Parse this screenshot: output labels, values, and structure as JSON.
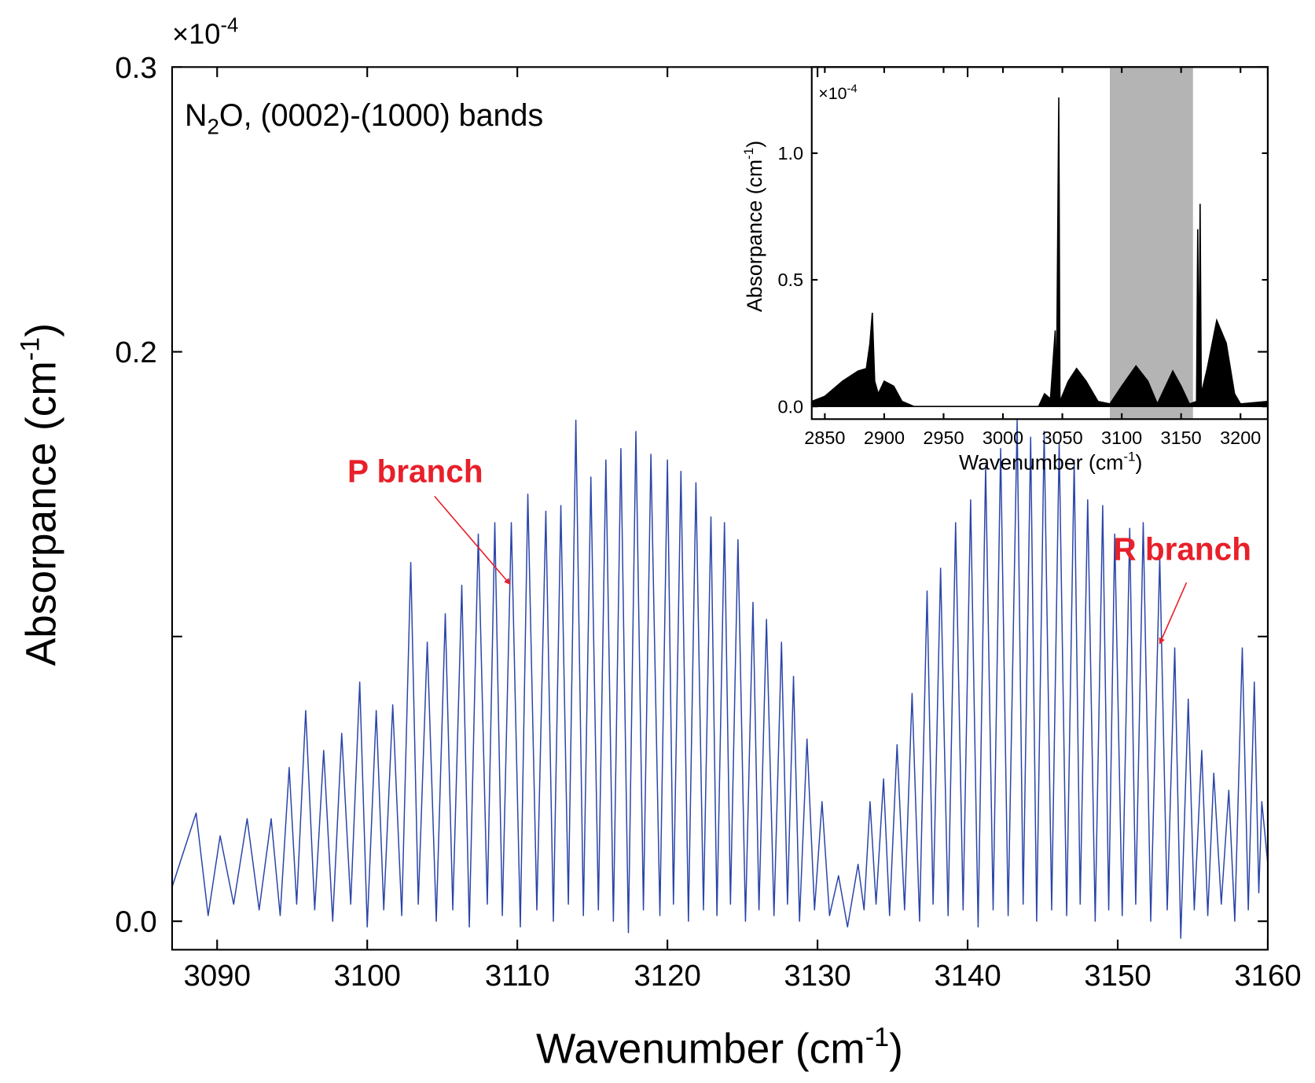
{
  "chart_data": [
    {
      "type": "line",
      "title": {
        "pre": "N",
        "sub": "2",
        "post": "O, (0002)-(1000) bands"
      },
      "x_label": {
        "pre": "Wavenumber (cm",
        "sup": "-1",
        "post": ")"
      },
      "y_label": {
        "pre": "Absorpance (cm",
        "sup": "-1",
        "post": ")"
      },
      "y_exponent": {
        "base": "×10",
        "sup": "-4"
      },
      "xlim": [
        3087,
        3160
      ],
      "xticks": [
        3090,
        3100,
        3110,
        3120,
        3130,
        3140,
        3150,
        3160
      ],
      "ylim": [
        -0.01,
        0.3
      ],
      "yticks": [
        {
          "value": 0,
          "label": "0.0"
        },
        0.2,
        0.3
      ],
      "yticks_minor": [
        0.1
      ],
      "series": [
        {
          "color": "#2a45a8",
          "x": [
            3087.0,
            3088.6,
            3089.4,
            3090.2,
            3091.1,
            3092.0,
            3092.8,
            3093.6,
            3094.2,
            3094.8,
            3095.3,
            3095.9,
            3096.5,
            3097.1,
            3097.7,
            3098.3,
            3098.9,
            3099.5,
            3100.0,
            3100.6,
            3101.1,
            3101.7,
            3102.3,
            3102.9,
            3103.4,
            3104.0,
            3104.6,
            3105.2,
            3105.7,
            3106.3,
            3106.8,
            3107.4,
            3108.0,
            3108.5,
            3109.0,
            3109.6,
            3110.2,
            3110.7,
            3111.3,
            3111.9,
            3112.4,
            3112.9,
            3113.4,
            3113.9,
            3114.4,
            3114.9,
            3115.4,
            3115.9,
            3116.4,
            3116.9,
            3117.4,
            3117.9,
            3118.4,
            3118.9,
            3119.5,
            3120.0,
            3120.4,
            3120.9,
            3121.4,
            3121.9,
            3122.4,
            3122.9,
            3123.3,
            3123.8,
            3124.2,
            3124.7,
            3125.2,
            3125.7,
            3126.1,
            3126.6,
            3127.1,
            3127.6,
            3128.0,
            3128.4,
            3128.8,
            3129.3,
            3129.8,
            3130.3,
            3130.8,
            3131.4,
            3132.0,
            3132.7,
            3133.1,
            3133.5,
            3133.9,
            3134.4,
            3134.8,
            3135.3,
            3135.8,
            3136.3,
            3136.8,
            3137.3,
            3137.7,
            3138.2,
            3138.7,
            3139.2,
            3139.7,
            3140.2,
            3140.7,
            3141.2,
            3141.7,
            3142.2,
            3142.7,
            3143.3,
            3143.7,
            3144.2,
            3144.6,
            3145.1,
            3145.6,
            3146.1,
            3146.6,
            3147.1,
            3147.5,
            3148.0,
            3148.5,
            3149.0,
            3149.4,
            3149.8,
            3150.3,
            3150.8,
            3151.2,
            3151.7,
            3152.2,
            3152.8,
            3153.3,
            3153.8,
            3154.2,
            3154.7,
            3155.1,
            3155.6,
            3156.0,
            3156.4,
            3156.9,
            3157.4,
            3157.8,
            3158.3,
            3158.7,
            3159.1,
            3159.4,
            3159.6,
            3160.0
          ],
          "values": [
            0.012,
            0.038,
            0.002,
            0.03,
            0.006,
            0.036,
            0.004,
            0.036,
            0.002,
            0.054,
            0.006,
            0.074,
            0.004,
            0.06,
            0.0,
            0.066,
            0.006,
            0.084,
            -0.002,
            0.074,
            0.004,
            0.076,
            0.002,
            0.126,
            0.006,
            0.098,
            0.0,
            0.108,
            0.004,
            0.118,
            -0.002,
            0.136,
            0.006,
            0.14,
            0.002,
            0.14,
            -0.002,
            0.15,
            0.004,
            0.144,
            0.0,
            0.146,
            0.006,
            0.176,
            0.002,
            0.156,
            0.004,
            0.162,
            0.0,
            0.166,
            -0.004,
            0.172,
            0.004,
            0.164,
            0.002,
            0.162,
            0.006,
            0.158,
            0.0,
            0.154,
            0.004,
            0.142,
            0.002,
            0.14,
            0.006,
            0.134,
            0.0,
            0.112,
            0.004,
            0.106,
            0.002,
            0.098,
            0.006,
            0.086,
            0.0,
            0.064,
            0.004,
            0.042,
            0.002,
            0.016,
            -0.002,
            0.02,
            0.004,
            0.042,
            0.006,
            0.05,
            0.002,
            0.062,
            0.004,
            0.08,
            0.0,
            0.116,
            0.006,
            0.124,
            0.002,
            0.14,
            0.004,
            0.148,
            -0.002,
            0.16,
            0.004,
            0.166,
            0.002,
            0.176,
            0.006,
            0.17,
            0.0,
            0.172,
            0.004,
            0.168,
            0.002,
            0.162,
            0.006,
            0.148,
            0.0,
            0.146,
            0.004,
            0.136,
            0.002,
            0.138,
            0.006,
            0.14,
            0.0,
            0.128,
            0.004,
            0.096,
            -0.006,
            0.078,
            0.004,
            0.06,
            0.002,
            0.052,
            0.006,
            0.046,
            0.0,
            0.096,
            0.004,
            0.084,
            0.01,
            0.042,
            0.02
          ]
        }
      ],
      "annotations": [
        {
          "text": "P branch",
          "color": "#e8202a"
        },
        {
          "text": "R branch",
          "color": "#e8202a"
        }
      ]
    },
    {
      "type": "area",
      "x_label": {
        "pre": "Wavenumber (cm",
        "sup": "-1",
        "post": ")"
      },
      "y_label": {
        "pre": "Absorpance (cm",
        "sup": "-1",
        "post": ")"
      },
      "y_exponent": {
        "base": "×10",
        "sup": "-4"
      },
      "xlim": [
        2839,
        3223
      ],
      "xticks": [
        2850,
        2900,
        2950,
        3000,
        3050,
        3100,
        3150,
        3200
      ],
      "ylim": [
        -0.05,
        1.34
      ],
      "yticks": [
        {
          "value": 0,
          "label": "0.0"
        },
        0.5,
        {
          "value": 1,
          "label": "1.0"
        }
      ],
      "highlight": [
        3090,
        3160
      ],
      "highlight_color": "#b4b4b4",
      "series": [
        {
          "color": "#000000",
          "x": [
            2839,
            2850,
            2865,
            2878,
            2885,
            2888,
            2890,
            2892,
            2895,
            2900,
            2908,
            2915,
            2925,
            3030,
            3035,
            3040,
            3044,
            3045,
            3047,
            3048,
            3055,
            3062,
            3070,
            3080,
            3090,
            3100,
            3112,
            3122,
            3130,
            3135,
            3143,
            3150,
            3157,
            3163,
            3164,
            3165,
            3166,
            3167,
            3172,
            3180,
            3188,
            3195,
            3200,
            3223
          ],
          "values": [
            0.02,
            0.04,
            0.1,
            0.14,
            0.15,
            0.25,
            0.37,
            0.1,
            0.05,
            0.1,
            0.08,
            0.02,
            0.0,
            0.0,
            0.05,
            0.03,
            0.3,
            0.02,
            1.22,
            0.02,
            0.1,
            0.15,
            0.1,
            0.02,
            0.01,
            0.08,
            0.16,
            0.1,
            0.01,
            0.06,
            0.14,
            0.08,
            0.01,
            0.02,
            0.7,
            0.05,
            0.8,
            0.05,
            0.15,
            0.34,
            0.25,
            0.05,
            0.01,
            0.02
          ]
        }
      ]
    }
  ]
}
